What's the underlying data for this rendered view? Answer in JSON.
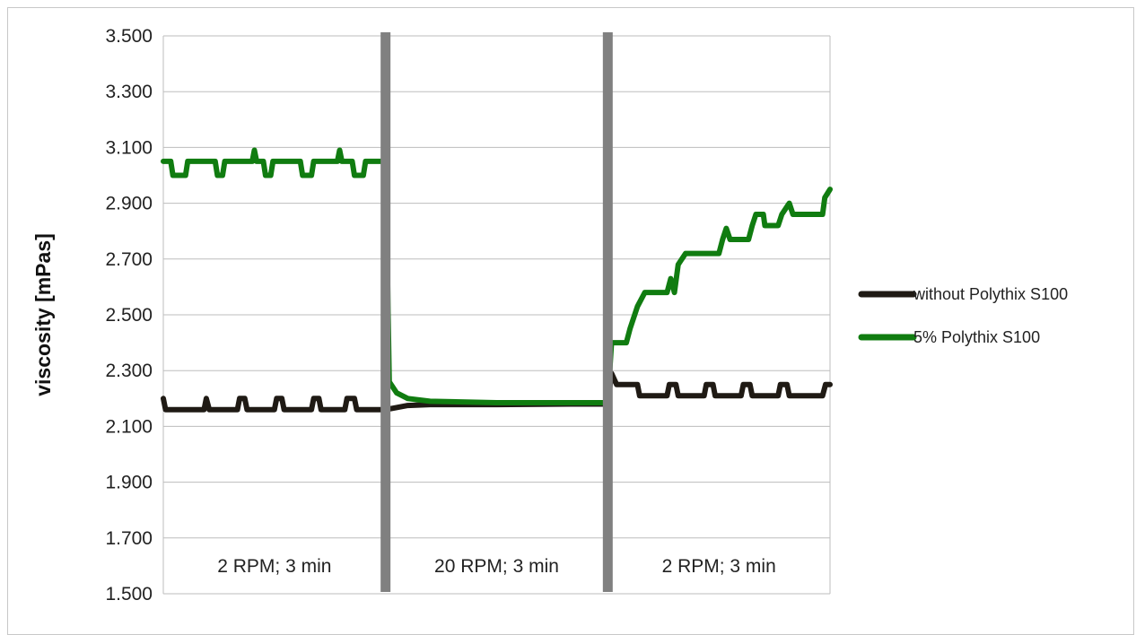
{
  "chart_data": {
    "type": "line",
    "title": "",
    "xlabel": "",
    "ylabel": "viscosity  [mPas]",
    "ylim": [
      1500,
      3500
    ],
    "yticks": [
      "3.500",
      "3.300",
      "3.100",
      "2.900",
      "2.700",
      "2.500",
      "2.300",
      "2.100",
      "1.900",
      "1.700",
      "1.500"
    ],
    "ytick_values": [
      3500,
      3300,
      3100,
      2900,
      2700,
      2500,
      2300,
      2100,
      1900,
      1700,
      1500
    ],
    "xlim": [
      0,
      9
    ],
    "x_unit": "min",
    "grid": true,
    "legend": "right",
    "segments": [
      {
        "label": "2 RPM; 3 min",
        "start": 0,
        "end": 3
      },
      {
        "label": "20 RPM; 3 min",
        "start": 3,
        "end": 6
      },
      {
        "label": "2 RPM; 3 min",
        "start": 6,
        "end": 9
      }
    ],
    "dividers": [
      3,
      6
    ],
    "series": [
      {
        "name": "without Polythix S100",
        "color": "#1f1a14",
        "points": [
          [
            0,
            2200
          ],
          [
            0.03,
            2160
          ],
          [
            0.55,
            2160
          ],
          [
            0.58,
            2200
          ],
          [
            0.62,
            2160
          ],
          [
            1.0,
            2160
          ],
          [
            1.03,
            2200
          ],
          [
            1.1,
            2200
          ],
          [
            1.13,
            2160
          ],
          [
            1.5,
            2160
          ],
          [
            1.53,
            2200
          ],
          [
            1.6,
            2200
          ],
          [
            1.63,
            2160
          ],
          [
            2.0,
            2160
          ],
          [
            2.03,
            2200
          ],
          [
            2.1,
            2200
          ],
          [
            2.13,
            2160
          ],
          [
            2.45,
            2160
          ],
          [
            2.48,
            2200
          ],
          [
            2.58,
            2200
          ],
          [
            2.61,
            2160
          ],
          [
            3.0,
            2160
          ],
          [
            3.1,
            2165
          ],
          [
            3.3,
            2175
          ],
          [
            3.6,
            2178
          ],
          [
            4.5,
            2178
          ],
          [
            5.5,
            2180
          ],
          [
            6.0,
            2180
          ],
          [
            6.05,
            2290
          ],
          [
            6.12,
            2250
          ],
          [
            6.4,
            2250
          ],
          [
            6.43,
            2210
          ],
          [
            6.8,
            2210
          ],
          [
            6.83,
            2250
          ],
          [
            6.92,
            2250
          ],
          [
            6.95,
            2210
          ],
          [
            7.3,
            2210
          ],
          [
            7.33,
            2250
          ],
          [
            7.42,
            2250
          ],
          [
            7.45,
            2210
          ],
          [
            7.8,
            2210
          ],
          [
            7.83,
            2250
          ],
          [
            7.92,
            2250
          ],
          [
            7.95,
            2210
          ],
          [
            8.3,
            2210
          ],
          [
            8.33,
            2250
          ],
          [
            8.42,
            2250
          ],
          [
            8.45,
            2210
          ],
          [
            8.9,
            2210
          ],
          [
            8.94,
            2250
          ],
          [
            9.0,
            2250
          ]
        ]
      },
      {
        "name": "5% Polythix S100",
        "color": "#107c10",
        "points": [
          [
            0,
            3050
          ],
          [
            0.1,
            3050
          ],
          [
            0.13,
            3000
          ],
          [
            0.3,
            3000
          ],
          [
            0.33,
            3050
          ],
          [
            0.7,
            3050
          ],
          [
            0.73,
            3000
          ],
          [
            0.8,
            3000
          ],
          [
            0.83,
            3050
          ],
          [
            1.2,
            3050
          ],
          [
            1.23,
            3090
          ],
          [
            1.26,
            3050
          ],
          [
            1.35,
            3050
          ],
          [
            1.38,
            3000
          ],
          [
            1.45,
            3000
          ],
          [
            1.48,
            3050
          ],
          [
            1.85,
            3050
          ],
          [
            1.88,
            3000
          ],
          [
            2.0,
            3000
          ],
          [
            2.03,
            3050
          ],
          [
            2.35,
            3050
          ],
          [
            2.38,
            3090
          ],
          [
            2.41,
            3050
          ],
          [
            2.55,
            3050
          ],
          [
            2.58,
            3000
          ],
          [
            2.7,
            3000
          ],
          [
            2.73,
            3050
          ],
          [
            3.0,
            3050
          ],
          [
            3.05,
            2260
          ],
          [
            3.15,
            2220
          ],
          [
            3.3,
            2200
          ],
          [
            3.6,
            2190
          ],
          [
            4.5,
            2185
          ],
          [
            5.5,
            2185
          ],
          [
            6.0,
            2185
          ],
          [
            6.05,
            2400
          ],
          [
            6.25,
            2400
          ],
          [
            6.3,
            2450
          ],
          [
            6.4,
            2530
          ],
          [
            6.5,
            2580
          ],
          [
            6.8,
            2580
          ],
          [
            6.85,
            2630
          ],
          [
            6.9,
            2580
          ],
          [
            6.95,
            2680
          ],
          [
            7.05,
            2720
          ],
          [
            7.5,
            2720
          ],
          [
            7.55,
            2770
          ],
          [
            7.6,
            2810
          ],
          [
            7.65,
            2770
          ],
          [
            7.9,
            2770
          ],
          [
            7.95,
            2820
          ],
          [
            8.0,
            2860
          ],
          [
            8.1,
            2860
          ],
          [
            8.12,
            2820
          ],
          [
            8.3,
            2820
          ],
          [
            8.35,
            2860
          ],
          [
            8.45,
            2900
          ],
          [
            8.5,
            2860
          ],
          [
            8.9,
            2860
          ],
          [
            8.93,
            2920
          ],
          [
            9.0,
            2950
          ]
        ]
      }
    ]
  }
}
